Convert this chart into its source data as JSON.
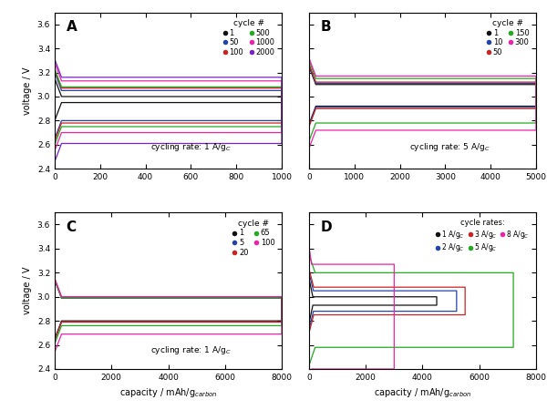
{
  "panel_A": {
    "label": "A",
    "cycling_rate": "cycling rate: 1 A/g$_C$",
    "xlim": [
      0,
      1000
    ],
    "ylim": [
      2.4,
      3.7
    ],
    "xticks": [
      0,
      200,
      400,
      600,
      800,
      1000
    ],
    "yticks": [
      2.4,
      2.6,
      2.8,
      3.0,
      3.2,
      3.4,
      3.6
    ],
    "legend_title": "cycle #",
    "cycles": [
      {
        "label": "1",
        "color": "#111111",
        "charge_v": 3.0,
        "discharge_v": 2.95,
        "cap": 1000
      },
      {
        "label": "50",
        "color": "#2244aa",
        "charge_v": 3.05,
        "discharge_v": 2.8,
        "cap": 1000
      },
      {
        "label": "100",
        "color": "#cc2222",
        "charge_v": 3.07,
        "discharge_v": 2.78,
        "cap": 1000
      },
      {
        "label": "500",
        "color": "#22aa22",
        "charge_v": 3.08,
        "discharge_v": 2.75,
        "cap": 1000
      },
      {
        "label": "1000",
        "color": "#ee22aa",
        "charge_v": 3.13,
        "discharge_v": 2.7,
        "cap": 1000
      },
      {
        "label": "2000",
        "color": "#7722cc",
        "charge_v": 3.16,
        "discharge_v": 2.61,
        "cap": 1000
      }
    ]
  },
  "panel_B": {
    "label": "B",
    "cycling_rate": "cycling rate: 5 A/g$_C$",
    "xlim": [
      0,
      5000
    ],
    "ylim": [
      2.4,
      3.7
    ],
    "xticks": [
      0,
      1000,
      2000,
      3000,
      4000,
      5000
    ],
    "yticks": [
      2.4,
      2.6,
      2.8,
      3.0,
      3.2,
      3.4,
      3.6
    ],
    "legend_title": "cycle #",
    "cycles": [
      {
        "label": "1",
        "color": "#111111",
        "charge_v": 3.1,
        "discharge_v": 2.92,
        "cap": 5000
      },
      {
        "label": "10",
        "color": "#2244aa",
        "charge_v": 3.11,
        "discharge_v": 2.91,
        "cap": 5000
      },
      {
        "label": "50",
        "color": "#cc2222",
        "charge_v": 3.12,
        "discharge_v": 2.9,
        "cap": 5000
      },
      {
        "label": "150",
        "color": "#22aa22",
        "charge_v": 3.15,
        "discharge_v": 2.78,
        "cap": 5000
      },
      {
        "label": "300",
        "color": "#ee22aa",
        "charge_v": 3.17,
        "discharge_v": 2.72,
        "cap": 5000
      }
    ]
  },
  "panel_C": {
    "label": "C",
    "cycling_rate": "cycling rate: 1 A/g$_C$",
    "xlim": [
      0,
      8000
    ],
    "ylim": [
      2.4,
      3.7
    ],
    "xticks": [
      0,
      2000,
      4000,
      6000,
      8000
    ],
    "yticks": [
      2.4,
      2.6,
      2.8,
      3.0,
      3.2,
      3.4,
      3.6
    ],
    "legend_title": "cycle #",
    "cycles": [
      {
        "label": "1",
        "color": "#111111",
        "charge_v": 2.99,
        "discharge_v": 2.8,
        "cap": 8000
      },
      {
        "label": "5",
        "color": "#2244aa",
        "charge_v": 2.99,
        "discharge_v": 2.79,
        "cap": 8000
      },
      {
        "label": "20",
        "color": "#cc2222",
        "charge_v": 3.0,
        "discharge_v": 2.79,
        "cap": 8000
      },
      {
        "label": "65",
        "color": "#22aa22",
        "charge_v": 2.99,
        "discharge_v": 2.76,
        "cap": 8000
      },
      {
        "label": "100",
        "color": "#ee22aa",
        "charge_v": 3.0,
        "discharge_v": 2.69,
        "cap": 8000
      }
    ]
  },
  "panel_D": {
    "label": "D",
    "legend_title": "cycle rates:",
    "xlim": [
      0,
      8000
    ],
    "ylim": [
      2.4,
      3.7
    ],
    "xticks": [
      0,
      2000,
      4000,
      6000,
      8000
    ],
    "yticks": [
      2.4,
      2.6,
      2.8,
      3.0,
      3.2,
      3.4,
      3.6
    ],
    "rates": [
      {
        "label": "1 A/g$_C$",
        "color": "#111111",
        "charge_v": 3.0,
        "discharge_v": 2.93,
        "cap": 4500
      },
      {
        "label": "2 A/g$_C$",
        "color": "#2244aa",
        "charge_v": 3.05,
        "discharge_v": 2.88,
        "cap": 5200
      },
      {
        "label": "3 A/g$_C$",
        "color": "#cc2222",
        "charge_v": 3.08,
        "discharge_v": 2.85,
        "cap": 5500
      },
      {
        "label": "5 A/g$_C$",
        "color": "#22aa22",
        "charge_v": 3.2,
        "discharge_v": 2.58,
        "cap": 7200
      },
      {
        "label": "8 A/g$_C$",
        "color": "#ee22aa",
        "charge_v": 3.27,
        "discharge_v": 2.4,
        "cap": 3000
      }
    ]
  },
  "xlabel": "capacity / mAh/g$_{carbon}$",
  "ylabel": "voltage / V",
  "figure_bg": "#ffffff",
  "axes_bg": "#ffffff"
}
